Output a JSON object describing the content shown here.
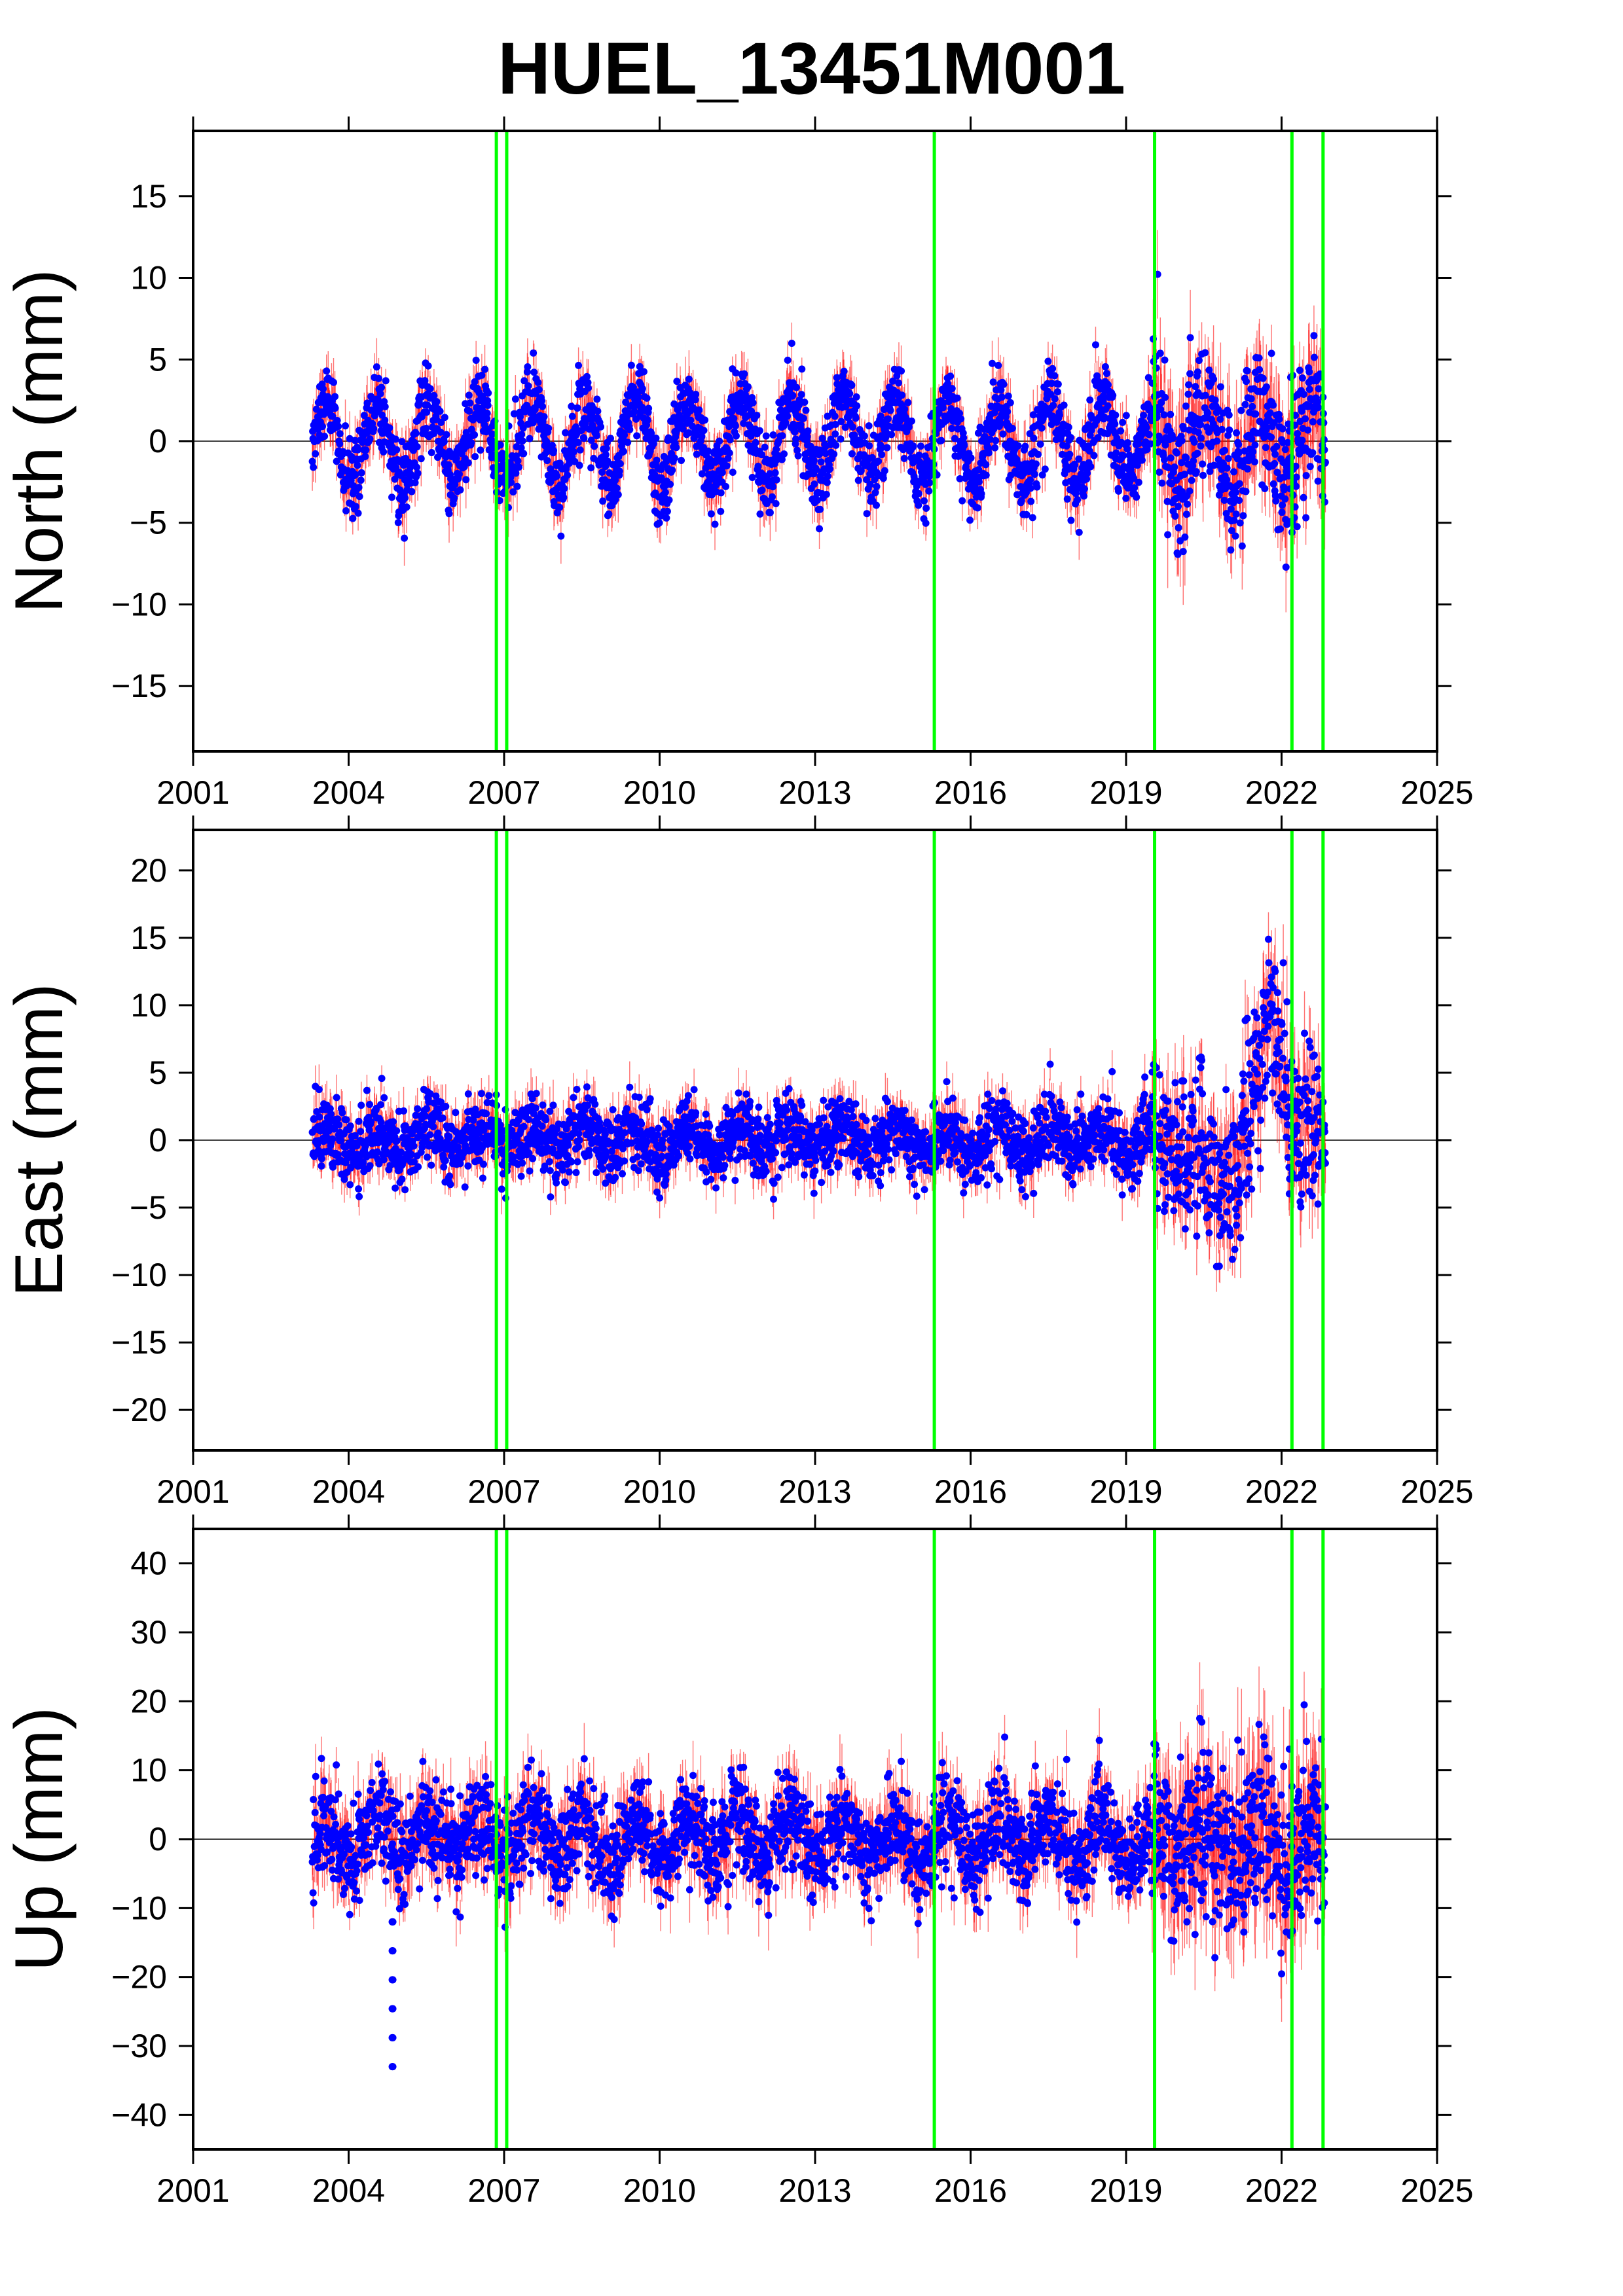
{
  "chart_data": {
    "type": "scatter",
    "title": "HUEL_13451M001",
    "xlim": [
      2001,
      2025
    ],
    "xticks": [
      "2001",
      "2004",
      "2007",
      "2010",
      "2013",
      "2016",
      "2019",
      "2022",
      "2025"
    ],
    "data_start": 2003.3,
    "data_end": 2022.85,
    "offset_lines_x": [
      2006.85,
      2007.05,
      2015.3,
      2019.55,
      2022.2,
      2022.8
    ],
    "colors": {
      "points": "#0000ff",
      "error_bars": "#ff0000",
      "offset_lines": "#00ff00",
      "zero_line": "#000000"
    },
    "panels": [
      {
        "ylabel": "North (mm)",
        "ylim": [
          -19,
          19
        ],
        "yticks": [
          15,
          10,
          5,
          0,
          -5,
          -10,
          -15
        ],
        "ytick_labels": [
          "15",
          "10",
          "5",
          "0",
          "−5",
          "−10",
          "−15"
        ],
        "amplitude_mm": 2.5,
        "noise_mm": 1.2,
        "late_noise_mm": 2.2
      },
      {
        "ylabel": "East (mm)",
        "ylim": [
          -23,
          23
        ],
        "yticks": [
          20,
          15,
          10,
          5,
          0,
          -5,
          -10,
          -15,
          -20
        ],
        "ytick_labels": [
          "20",
          "15",
          "10",
          "5",
          "0",
          "−5",
          "−10",
          "−15",
          "−20"
        ],
        "amplitude_mm": 1.0,
        "noise_mm": 1.3,
        "late_noise_mm": 3.0,
        "peak_x": 2021.8,
        "peak_mm": 9
      },
      {
        "ylabel": "Up (mm)",
        "ylim": [
          -45,
          45
        ],
        "yticks": [
          40,
          30,
          20,
          10,
          0,
          -10,
          -20,
          -30,
          -40
        ],
        "ytick_labels": [
          "40",
          "30",
          "20",
          "10",
          "0",
          "−10",
          "−20",
          "−30",
          "−40"
        ],
        "amplitude_mm": 3.0,
        "noise_mm": 3.5,
        "late_noise_mm": 6.0,
        "outlier_x": 2004.85,
        "outlier_min_mm": -33
      }
    ]
  }
}
